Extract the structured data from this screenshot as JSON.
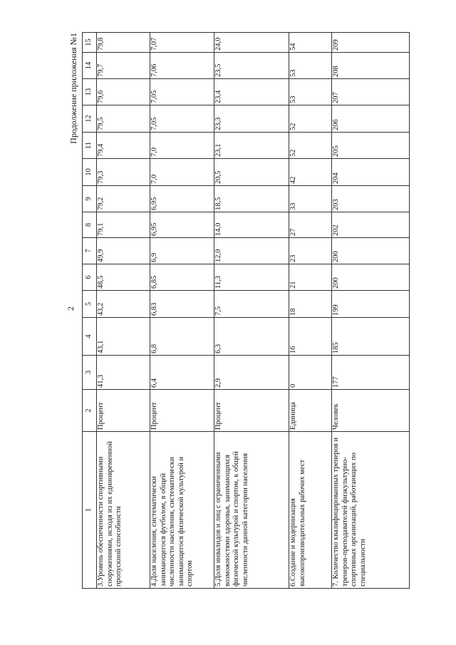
{
  "page_number": "2",
  "continuation": "Продолжение приложения №1",
  "table": {
    "headers": [
      "1",
      "2",
      "3",
      "4",
      "5",
      "6",
      "7",
      "8",
      "9",
      "10",
      "11",
      "12",
      "13",
      "14",
      "15"
    ],
    "rows": [
      {
        "name": "3.Уровень обеспеченности спортивными сооружениями, исходя из их единовременной пропускной способности",
        "unit": "Процент",
        "values": [
          "41,3",
          "43,1",
          "43,2",
          "48,5",
          "49,9",
          "79,1",
          "79,2",
          "79,3",
          "79,4",
          "79,5",
          "79,6",
          "79,7",
          "79,8"
        ]
      },
      {
        "name": "4.Доля населения, систематически занимающегося футболом, в общей численности населения, систематически занимающегося физической культурой и спортом",
        "unit": "Процент",
        "values": [
          "6,4",
          "6,8",
          "6,83",
          "6,85",
          "6,9",
          "6,95",
          "6,95",
          "7,0",
          "7,0",
          "7,05",
          "7,05",
          "7,06",
          "7,07"
        ]
      },
      {
        "name": "5.Доля инвалидов и лиц с ограниченными возможностями здоровья, занимающихся физической культурой и спортом, к общей численности данной категории населения",
        "unit": "Процент",
        "values": [
          "2,9",
          "6,3",
          "7,5",
          "11,3",
          "12,0",
          "14,0",
          "18,5",
          "20,5",
          "23,1",
          "23,3",
          "23,4",
          "23,5",
          "24,0"
        ]
      },
      {
        "name": "6.Создание и модернизация высокопроизводительных рабочих мест",
        "unit": "Единица",
        "values": [
          "0",
          "16",
          "18",
          "21",
          "23",
          "27",
          "33",
          "42",
          "52",
          "52",
          "53",
          "53",
          "54"
        ]
      },
      {
        "name": "7. Количество квалифицированных тренеров и тренеров-преподавателей физкультурно-спортивных организаций, работающих по специальности",
        "unit": "Человек",
        "values": [
          "177",
          "185",
          "199",
          "200",
          "200",
          "202",
          "203",
          "204",
          "205",
          "206",
          "207",
          "208",
          "209"
        ]
      }
    ]
  }
}
